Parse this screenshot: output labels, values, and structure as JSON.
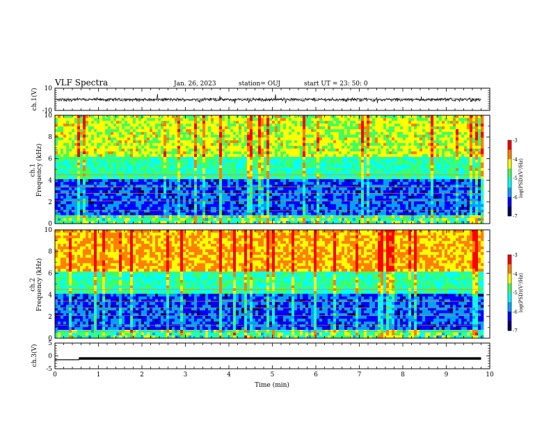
{
  "header": {
    "title": "VLF Spectra",
    "date": "Jan. 26, 2023",
    "station": "station= OUJ",
    "start": "start  UT =   23: 50: 0"
  },
  "chart_data": [
    {
      "type": "line",
      "name": "ch1-waveform",
      "ylabel": "ch.1(V)",
      "ylim": [
        -10,
        10
      ],
      "yticks": [
        "10",
        "-10"
      ],
      "x": [
        0,
        0.5,
        1,
        1.5,
        2,
        2.5,
        3,
        3.5,
        4,
        4.5,
        5,
        5.5,
        6,
        6.5,
        7,
        7.5,
        8,
        8.5,
        9,
        9.5,
        9.8
      ],
      "values": [
        0,
        0.5,
        -0.5,
        0.3,
        -0.4,
        0.2,
        -0.3,
        0.4,
        -0.2,
        0.3,
        -0.5,
        0.2,
        0.1,
        -0.3,
        0.4,
        -0.2,
        0.3,
        -0.4,
        0.2,
        0.1,
        0
      ]
    },
    {
      "type": "heatmap",
      "name": "ch1-spectrogram",
      "ylabel": "ch.1\nFrequency (kHz)",
      "ylim": [
        0,
        10
      ],
      "yticks": [
        "0",
        "2",
        "4",
        "6",
        "8",
        "10"
      ],
      "colorbar": {
        "label": "log(PSD)(V²/Hz)",
        "range": [
          -7,
          -3
        ],
        "ticks": [
          "-3",
          "-4",
          "-5",
          "-6",
          "-7"
        ]
      }
    },
    {
      "type": "heatmap",
      "name": "ch2-spectrogram",
      "ylabel": "ch.2\nFrequency (kHz)",
      "ylim": [
        0,
        10
      ],
      "yticks": [
        "0",
        "2",
        "4",
        "6",
        "8",
        "10"
      ],
      "colorbar": {
        "label": "log(PSD)(V²/Hz)",
        "range": [
          -7,
          -3
        ],
        "ticks": [
          "-3",
          "-4",
          "-5",
          "-6",
          "-7"
        ]
      }
    },
    {
      "type": "line",
      "name": "ch3-trace",
      "ylabel": "ch.3(V)",
      "ylim": [
        -5,
        5
      ],
      "yticks": [
        "5",
        "0",
        "-5"
      ],
      "x": [
        0,
        0.55,
        0.56,
        9.8
      ],
      "values": [
        -1.5,
        -1.5,
        -1.0,
        -1.0
      ]
    }
  ],
  "x_axis": {
    "label": "Time (min)",
    "range": [
      0,
      10
    ],
    "ticks": [
      "0",
      "1",
      "2",
      "3",
      "4",
      "5",
      "6",
      "7",
      "8",
      "9",
      "10"
    ]
  },
  "colors": {
    "colormap": [
      "#000060",
      "#0000ff",
      "#00a0ff",
      "#00ffff",
      "#40ff60",
      "#ffff00",
      "#ff8000",
      "#ff0000",
      "#ffffff"
    ]
  }
}
